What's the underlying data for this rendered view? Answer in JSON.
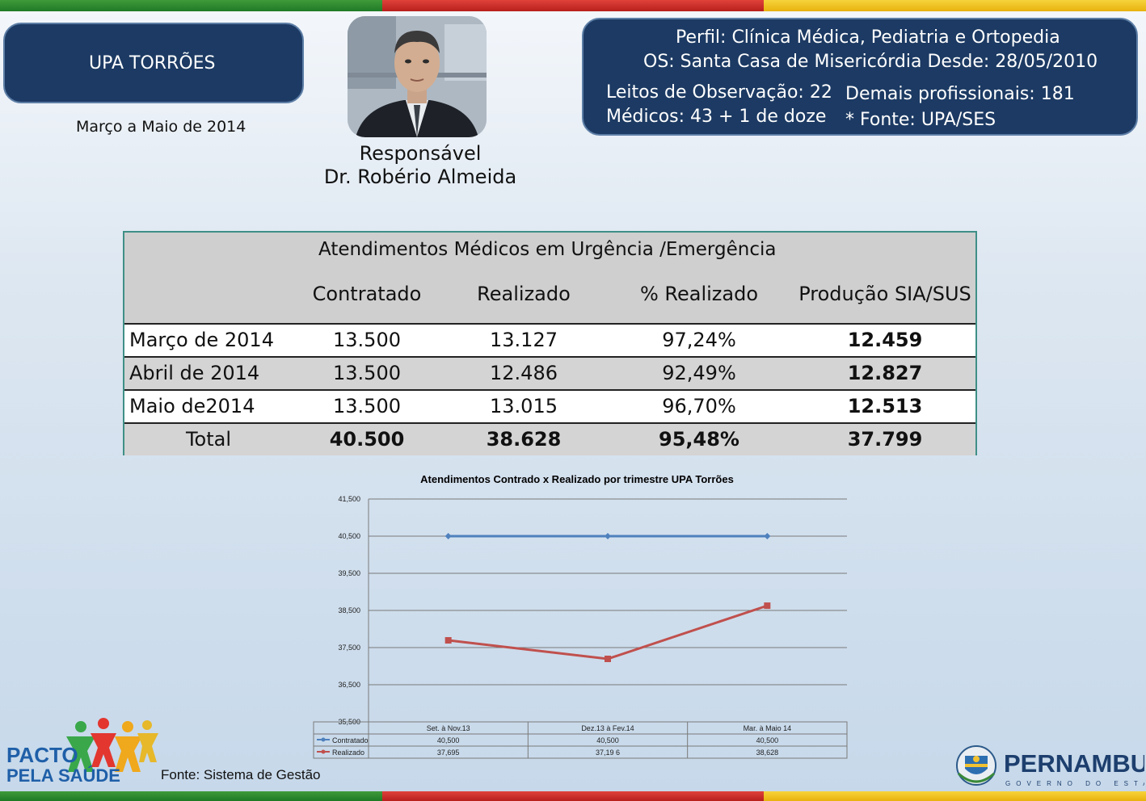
{
  "header": {
    "unit_name": "UPA TORRÕES",
    "period": "Março a Maio de 2014",
    "responsible_label": "Responsável",
    "responsible_name": "Dr. Robério Almeida"
  },
  "info": {
    "profile": "Perfil:  Clínica Médica, Pediatria e Ortopedia",
    "os": "OS: Santa Casa de Misericórdia   Desde: 28/05/2010",
    "beds": "Leitos de Observação: 22",
    "doctors": "Médicos: 43 + 1 de doze",
    "other_staff": "Demais profissionais: 181",
    "source_note": "* Fonte: UPA/SES"
  },
  "table": {
    "title": "Atendimentos Médicos em Urgência /Emergência",
    "columns": [
      "Contratado",
      "Realizado",
      "% Realizado",
      "Produção SIA/SUS"
    ],
    "rows": [
      {
        "label": "Março de 2014",
        "values": [
          "13.500",
          "13.127",
          "97,24%",
          "12.459"
        ]
      },
      {
        "label": "Abril de 2014",
        "values": [
          "13.500",
          "12.486",
          "92,49%",
          "12.827"
        ]
      },
      {
        "label": "Maio de2014",
        "values": [
          "13.500",
          "13.015",
          "96,70%",
          "12.513"
        ]
      },
      {
        "label": "Total",
        "values": [
          "40.500",
          "38.628",
          "95,48%",
          "37.799"
        ]
      }
    ]
  },
  "chart_data": {
    "type": "line",
    "title": "Atendimentos Contrado x Realizado  por trimestre  UPA Torrões",
    "categories": [
      "Set. à Nov.13",
      "Dez.13 à Fev.14",
      "Mar. à Maio 14"
    ],
    "y_ticks": [
      "41,500",
      "40,500",
      "39,500",
      "38,500",
      "37,500",
      "36,500",
      "35,500"
    ],
    "ylim": [
      35500,
      41500
    ],
    "series": [
      {
        "name": "Contratado",
        "color": "#4f81bd",
        "values": [
          40500,
          40500,
          40500
        ],
        "labels": [
          "40,500",
          "40,500",
          "40,500"
        ]
      },
      {
        "name": "Realizado",
        "color": "#c0504d",
        "values": [
          37695,
          37196,
          38628
        ],
        "labels": [
          "37,695",
          "37,19 6",
          "38,628"
        ]
      }
    ]
  },
  "footer": {
    "source": "Fonte: Sistema de Gestão",
    "pacto_line1": "PACTO",
    "pacto_line2": "PELA SAÚDE",
    "state_name": "PERNAMBUCO",
    "state_sub": "GOVERNO DO ESTADO"
  },
  "colors": {
    "panel": "#1c3a63",
    "accent_green": "#2a8a2f",
    "accent_red": "#c9302c",
    "accent_yellow": "#f0c020"
  }
}
